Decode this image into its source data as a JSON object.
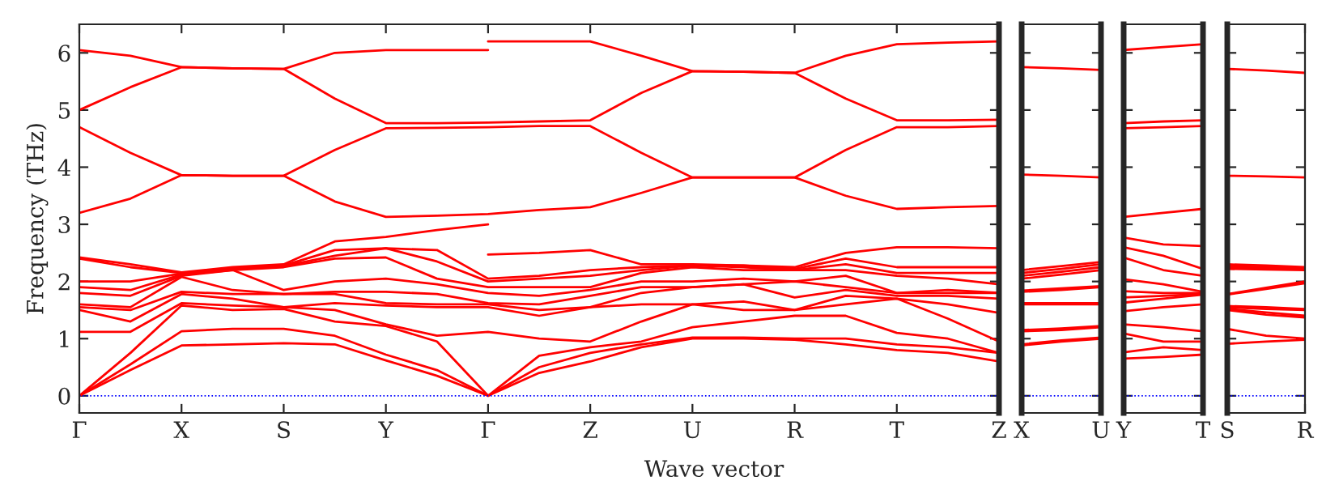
{
  "chart_data": [
    {
      "type": "line",
      "ylabel": "Frequency (THz)",
      "xlabel": "Wave vector",
      "ylim": [
        -0.3,
        6.5
      ],
      "yticks": [
        0,
        1,
        2,
        3,
        4,
        5,
        6
      ],
      "categories": [
        "Γ",
        null,
        "X",
        null,
        "S",
        null,
        "Y",
        null,
        "Γ",
        null,
        "Z",
        null,
        "U",
        null,
        "R",
        null,
        "T",
        null,
        "Z"
      ],
      "grid": false,
      "line_style": "solid",
      "marker": "none",
      "ref_lines": [
        {
          "axis": "y",
          "value": 0,
          "color": "#0000ff",
          "line_style": "dotted"
        }
      ],
      "series": [
        {
          "color": "#ff0000",
          "values": [
            6.05,
            5.95,
            5.75,
            5.73,
            5.72,
            6.0,
            6.05,
            6.05,
            6.05,
            null,
            null,
            null,
            null,
            null,
            null,
            null,
            null,
            null,
            null
          ]
        },
        {
          "color": "#ff0000",
          "values": [
            null,
            null,
            null,
            null,
            null,
            null,
            null,
            null,
            6.2,
            6.2,
            6.2,
            5.95,
            5.68,
            5.67,
            5.65,
            5.95,
            6.15,
            6.18,
            6.2
          ]
        },
        {
          "color": "#ff0000",
          "values": [
            5.0,
            5.4,
            5.75,
            5.73,
            5.72,
            5.2,
            4.77,
            4.77,
            4.78,
            4.8,
            4.82,
            5.3,
            5.68,
            5.67,
            5.65,
            5.2,
            4.82,
            4.82,
            4.83
          ]
        },
        {
          "color": "#ff0000",
          "values": [
            4.7,
            4.25,
            3.86,
            3.85,
            3.85,
            4.3,
            4.68,
            4.69,
            4.7,
            4.72,
            4.72,
            4.25,
            3.82,
            3.82,
            3.82,
            4.3,
            4.7,
            4.7,
            4.72
          ]
        },
        {
          "color": "#ff0000",
          "values": [
            3.2,
            3.45,
            3.86,
            3.85,
            3.85,
            3.4,
            3.13,
            3.15,
            3.18,
            3.25,
            3.3,
            3.55,
            3.82,
            3.82,
            3.82,
            3.5,
            3.27,
            3.3,
            3.32
          ]
        },
        {
          "color": "#ff0000",
          "values": [
            0,
            0.45,
            0.88,
            0.9,
            0.92,
            0.9,
            0.62,
            0.35,
            0,
            0.4,
            0.6,
            0.85,
            1.0,
            1.0,
            0.98,
            0.9,
            0.8,
            0.75,
            0.6
          ]
        },
        {
          "color": "#ff0000",
          "values": [
            0,
            0.55,
            1.13,
            1.17,
            1.17,
            1.05,
            0.72,
            0.45,
            0,
            0.5,
            0.75,
            0.9,
            1.02,
            1.02,
            1.0,
            1.0,
            0.9,
            0.85,
            0.75
          ]
        },
        {
          "color": "#ff0000",
          "values": [
            0,
            0.75,
            1.58,
            1.5,
            1.52,
            1.3,
            1.22,
            0.95,
            0,
            0.7,
            0.85,
            0.95,
            1.2,
            1.3,
            1.4,
            1.4,
            1.1,
            1.0,
            0.75
          ]
        },
        {
          "color": "#ff0000",
          "values": [
            1.12,
            1.12,
            1.62,
            1.58,
            1.55,
            1.5,
            1.25,
            1.05,
            1.12,
            1.0,
            0.95,
            1.3,
            1.6,
            1.5,
            1.5,
            1.6,
            1.7,
            1.35,
            0.95
          ]
        },
        {
          "color": "#ff0000",
          "values": [
            1.5,
            1.3,
            1.78,
            1.7,
            1.55,
            1.62,
            1.58,
            1.55,
            1.55,
            1.4,
            1.55,
            1.6,
            1.6,
            1.65,
            1.5,
            1.75,
            1.7,
            1.6,
            1.45
          ]
        },
        {
          "color": "#ff0000",
          "values": [
            1.55,
            1.5,
            1.82,
            1.78,
            1.78,
            1.78,
            1.62,
            1.6,
            1.6,
            1.5,
            1.55,
            1.8,
            1.9,
            1.95,
            1.72,
            1.85,
            1.75,
            1.75,
            1.7
          ]
        },
        {
          "color": "#ff0000",
          "values": [
            1.6,
            1.55,
            2.08,
            1.85,
            1.78,
            1.82,
            1.82,
            1.78,
            1.62,
            1.6,
            1.75,
            1.9,
            1.9,
            1.95,
            2.0,
            1.9,
            1.8,
            1.8,
            1.8
          ]
        },
        {
          "color": "#ff0000",
          "values": [
            1.8,
            1.75,
            2.1,
            2.2,
            1.85,
            2.0,
            2.05,
            1.95,
            1.8,
            1.75,
            1.85,
            2.0,
            2.0,
            2.05,
            2.0,
            2.1,
            1.8,
            1.85,
            1.8
          ]
        },
        {
          "color": "#ff0000",
          "values": [
            1.9,
            1.85,
            2.12,
            2.2,
            2.25,
            2.4,
            2.42,
            2.05,
            1.9,
            1.9,
            1.9,
            2.15,
            2.25,
            2.2,
            2.2,
            2.2,
            2.1,
            2.05,
            1.95
          ]
        },
        {
          "color": "#ff0000",
          "values": [
            2.0,
            2.0,
            2.14,
            2.22,
            2.27,
            2.45,
            2.58,
            2.35,
            2.0,
            2.05,
            2.1,
            2.2,
            2.28,
            2.25,
            2.2,
            2.3,
            2.15,
            2.15,
            2.15
          ]
        },
        {
          "color": "#ff0000",
          "values": [
            2.4,
            2.25,
            2.15,
            2.22,
            2.28,
            2.55,
            2.58,
            2.55,
            2.05,
            2.1,
            2.2,
            2.25,
            2.28,
            2.28,
            2.22,
            2.4,
            2.25,
            2.25,
            2.25
          ]
        },
        {
          "color": "#ff0000",
          "values": [
            2.42,
            2.3,
            2.16,
            2.25,
            2.3,
            2.7,
            2.78,
            2.9,
            3.0,
            null,
            null,
            null,
            null,
            null,
            null,
            null,
            null,
            null,
            null
          ]
        },
        {
          "color": "#ff0000",
          "values": [
            null,
            null,
            null,
            null,
            null,
            null,
            null,
            null,
            2.47,
            2.5,
            2.55,
            2.3,
            2.3,
            2.28,
            2.25,
            2.5,
            2.6,
            2.6,
            2.58
          ]
        }
      ]
    },
    {
      "type": "line",
      "ylim": [
        -0.3,
        6.5
      ],
      "yticks": [
        0,
        1,
        2,
        3,
        4,
        5,
        6
      ],
      "tick_labels": "x",
      "categories": [
        "X",
        null,
        "U"
      ],
      "grid": false,
      "line_style": "solid",
      "marker": "none",
      "ref_lines": [
        {
          "axis": "y",
          "value": 0,
          "color": "#0000ff",
          "line_style": "dotted"
        }
      ],
      "series": [
        {
          "color": "#ff0000",
          "values": [
            5.75,
            5.73,
            5.7
          ]
        },
        {
          "color": "#ff0000",
          "values": [
            3.87,
            3.85,
            3.82
          ]
        },
        {
          "color": "#ff0000",
          "values": [
            0.88,
            0.95,
            1.0
          ]
        },
        {
          "color": "#ff0000",
          "values": [
            0.9,
            0.97,
            1.02
          ]
        },
        {
          "color": "#ff0000",
          "values": [
            1.13,
            1.15,
            1.2
          ]
        },
        {
          "color": "#ff0000",
          "values": [
            1.15,
            1.18,
            1.22
          ]
        },
        {
          "color": "#ff0000",
          "values": [
            1.6,
            1.6,
            1.6
          ]
        },
        {
          "color": "#ff0000",
          "values": [
            1.62,
            1.62,
            1.62
          ]
        },
        {
          "color": "#ff0000",
          "values": [
            1.82,
            1.85,
            1.9
          ]
        },
        {
          "color": "#ff0000",
          "values": [
            1.84,
            1.88,
            1.92
          ]
        },
        {
          "color": "#ff0000",
          "values": [
            2.05,
            2.12,
            2.2
          ]
        },
        {
          "color": "#ff0000",
          "values": [
            2.1,
            2.17,
            2.25
          ]
        },
        {
          "color": "#ff0000",
          "values": [
            2.15,
            2.22,
            2.3
          ]
        },
        {
          "color": "#ff0000",
          "values": [
            2.2,
            2.27,
            2.34
          ]
        }
      ]
    },
    {
      "type": "line",
      "ylim": [
        -0.3,
        6.5
      ],
      "yticks": [
        0,
        1,
        2,
        3,
        4,
        5,
        6
      ],
      "tick_labels": "x",
      "categories": [
        "Y",
        null,
        "T"
      ],
      "grid": false,
      "line_style": "solid",
      "marker": "none",
      "ref_lines": [
        {
          "axis": "y",
          "value": 0,
          "color": "#0000ff",
          "line_style": "dotted"
        }
      ],
      "series": [
        {
          "color": "#ff0000",
          "values": [
            6.05,
            6.1,
            6.15
          ]
        },
        {
          "color": "#ff0000",
          "values": [
            4.77,
            4.8,
            4.82
          ]
        },
        {
          "color": "#ff0000",
          "values": [
            4.68,
            4.7,
            4.72
          ]
        },
        {
          "color": "#ff0000",
          "values": [
            3.13,
            3.2,
            3.27
          ]
        },
        {
          "color": "#ff0000",
          "values": [
            0.65,
            0.68,
            0.72
          ]
        },
        {
          "color": "#ff0000",
          "values": [
            0.76,
            0.85,
            0.8
          ]
        },
        {
          "color": "#ff0000",
          "values": [
            1.09,
            0.95,
            0.95
          ]
        },
        {
          "color": "#ff0000",
          "values": [
            1.25,
            1.2,
            1.13
          ]
        },
        {
          "color": "#ff0000",
          "values": [
            1.48,
            1.55,
            1.6
          ]
        },
        {
          "color": "#ff0000",
          "values": [
            1.63,
            1.7,
            1.77
          ]
        },
        {
          "color": "#ff0000",
          "values": [
            1.72,
            1.75,
            1.78
          ]
        },
        {
          "color": "#ff0000",
          "values": [
            1.83,
            1.8,
            1.8
          ]
        },
        {
          "color": "#ff0000",
          "values": [
            2.04,
            1.95,
            1.82
          ]
        },
        {
          "color": "#ff0000",
          "values": [
            2.42,
            2.2,
            2.1
          ]
        },
        {
          "color": "#ff0000",
          "values": [
            2.6,
            2.45,
            2.22
          ]
        },
        {
          "color": "#ff0000",
          "values": [
            2.77,
            2.65,
            2.62
          ]
        }
      ]
    },
    {
      "type": "line",
      "ylim": [
        -0.3,
        6.5
      ],
      "yticks": [
        0,
        1,
        2,
        3,
        4,
        5,
        6
      ],
      "tick_labels": "x",
      "categories": [
        "S",
        null,
        "R"
      ],
      "grid": false,
      "line_style": "solid",
      "marker": "none",
      "ref_lines": [
        {
          "axis": "y",
          "value": 0,
          "color": "#0000ff",
          "line_style": "dotted"
        }
      ],
      "series": [
        {
          "color": "#ff0000",
          "values": [
            5.72,
            5.69,
            5.65
          ]
        },
        {
          "color": "#ff0000",
          "values": [
            3.85,
            3.84,
            3.82
          ]
        },
        {
          "color": "#ff0000",
          "values": [
            0.91,
            0.95,
            0.98
          ]
        },
        {
          "color": "#ff0000",
          "values": [
            1.17,
            1.05,
            1.0
          ]
        },
        {
          "color": "#ff0000",
          "values": [
            1.5,
            1.42,
            1.37
          ]
        },
        {
          "color": "#ff0000",
          "values": [
            1.52,
            1.46,
            1.4
          ]
        },
        {
          "color": "#ff0000",
          "values": [
            1.55,
            1.52,
            1.5
          ]
        },
        {
          "color": "#ff0000",
          "values": [
            1.57,
            1.55,
            1.52
          ]
        },
        {
          "color": "#ff0000",
          "values": [
            1.77,
            1.87,
            1.97
          ]
        },
        {
          "color": "#ff0000",
          "values": [
            1.78,
            1.89,
            2.0
          ]
        },
        {
          "color": "#ff0000",
          "values": [
            2.22,
            2.21,
            2.2
          ]
        },
        {
          "color": "#ff0000",
          "values": [
            2.25,
            2.23,
            2.22
          ]
        },
        {
          "color": "#ff0000",
          "values": [
            2.27,
            2.25,
            2.24
          ]
        },
        {
          "color": "#ff0000",
          "values": [
            2.3,
            2.28,
            2.25
          ]
        }
      ]
    }
  ]
}
